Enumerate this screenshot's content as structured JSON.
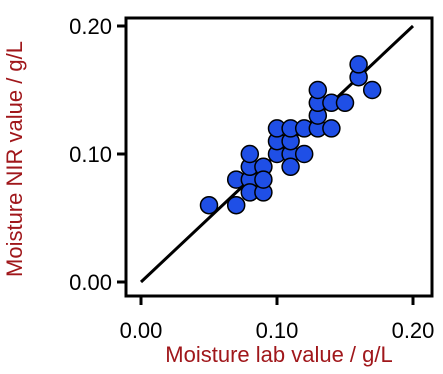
{
  "chart_data": {
    "type": "scatter",
    "title": "",
    "xlabel": "Moisture lab value / g/L",
    "ylabel": "Moisture NIR value / g/L",
    "xlim": [
      0.0,
      0.2
    ],
    "ylim": [
      0.0,
      0.2
    ],
    "x_ticks": [
      "0.00",
      "0.10",
      "0.20"
    ],
    "y_ticks": [
      "0.00",
      "0.10",
      "0.20"
    ],
    "grid": false,
    "series": [
      {
        "points": [
          [
            0.05,
            0.06
          ],
          [
            0.07,
            0.06
          ],
          [
            0.07,
            0.08
          ],
          [
            0.08,
            0.08
          ],
          [
            0.08,
            0.07
          ],
          [
            0.09,
            0.07
          ],
          [
            0.08,
            0.09
          ],
          [
            0.09,
            0.09
          ],
          [
            0.08,
            0.1
          ],
          [
            0.09,
            0.08
          ],
          [
            0.1,
            0.1
          ],
          [
            0.1,
            0.11
          ],
          [
            0.1,
            0.12
          ],
          [
            0.11,
            0.1
          ],
          [
            0.11,
            0.09
          ],
          [
            0.11,
            0.11
          ],
          [
            0.11,
            0.12
          ],
          [
            0.12,
            0.1
          ],
          [
            0.12,
            0.12
          ],
          [
            0.13,
            0.12
          ],
          [
            0.13,
            0.13
          ],
          [
            0.13,
            0.14
          ],
          [
            0.13,
            0.15
          ],
          [
            0.14,
            0.12
          ],
          [
            0.14,
            0.14
          ],
          [
            0.15,
            0.14
          ],
          [
            0.16,
            0.16
          ],
          [
            0.16,
            0.17
          ],
          [
            0.17,
            0.15
          ]
        ]
      }
    ],
    "reference_line": {
      "from": [
        0.0,
        0.0
      ],
      "to": [
        0.2,
        0.2
      ]
    },
    "colors": {
      "marker_fill": "#1f4fe6",
      "marker_stroke": "#000000",
      "line": "#000000",
      "axis_title": "#a0171b"
    }
  }
}
